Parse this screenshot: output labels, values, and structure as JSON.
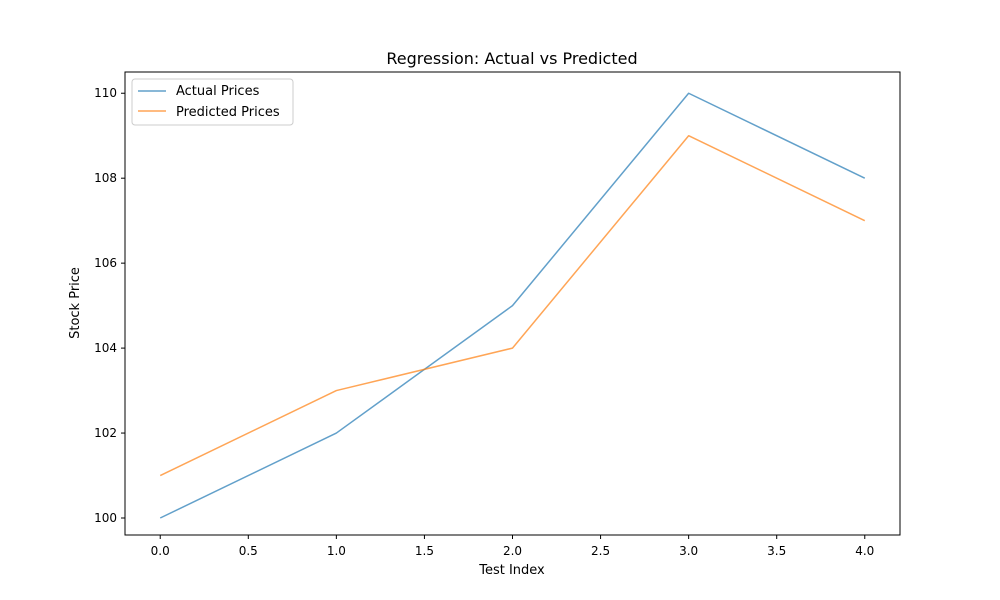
{
  "chart_data": {
    "type": "line",
    "title": "Regression: Actual vs Predicted",
    "xlabel": "Test Index",
    "ylabel": "Stock Price",
    "x": [
      0,
      1,
      2,
      3,
      4
    ],
    "xlim": [
      -0.2,
      4.2
    ],
    "ylim": [
      99.6,
      110.5
    ],
    "xticks": [
      0.0,
      0.5,
      1.0,
      1.5,
      2.0,
      2.5,
      3.0,
      3.5,
      4.0
    ],
    "xtick_labels": [
      "0.0",
      "0.5",
      "1.0",
      "1.5",
      "2.0",
      "2.5",
      "3.0",
      "3.5",
      "4.0"
    ],
    "yticks": [
      100,
      102,
      104,
      106,
      108,
      110
    ],
    "ytick_labels": [
      "100",
      "102",
      "104",
      "106",
      "108",
      "110"
    ],
    "grid": false,
    "legend_position": "upper-left",
    "series": [
      {
        "name": "Actual Prices",
        "color": "#1f77b4",
        "values": [
          100,
          102,
          105,
          110,
          108
        ]
      },
      {
        "name": "Predicted Prices",
        "color": "#ff7f0e",
        "values": [
          101,
          103,
          104,
          109,
          107
        ]
      }
    ]
  }
}
